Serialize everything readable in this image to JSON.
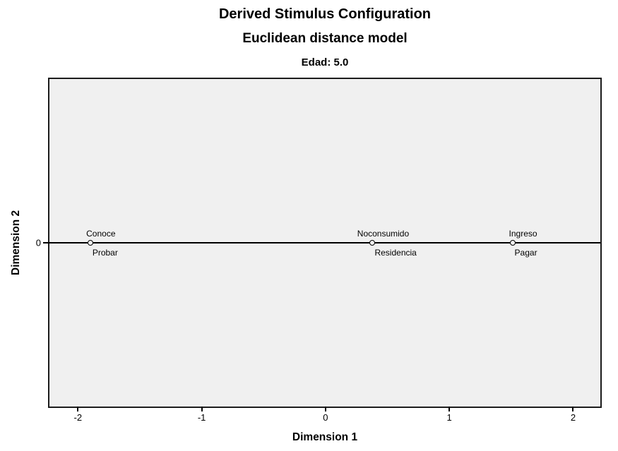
{
  "chart_data": {
    "type": "scatter",
    "title": "Derived Stimulus Configuration",
    "subtitle": "Euclidean distance model",
    "panel_label": "Edad: 5.0",
    "xlabel": "Dimension 1",
    "ylabel": "Dimension 2",
    "xlim": [
      -2.23,
      2.22
    ],
    "ylim": [
      -1.25,
      1.25
    ],
    "x_ticks": [
      -2,
      -1,
      0,
      1,
      2
    ],
    "y_ticks": [
      0
    ],
    "grid": false,
    "legend": false,
    "plot_background": "#f0f0f0",
    "frame_color": "#1c1c1c",
    "marker": {
      "shape": "open-circle",
      "stroke": "#000000",
      "fill": "#f0f0f0"
    },
    "reference_line": {
      "axis": "y",
      "value": 0
    },
    "points": [
      {
        "x": -1.9,
        "y": 0,
        "label_above": "Conoce",
        "label_below": "Probar"
      },
      {
        "x": 0.38,
        "y": 0,
        "label_above": "Noconsumido",
        "label_below": "Residencia"
      },
      {
        "x": 1.51,
        "y": 0,
        "label_above": "Ingreso",
        "label_below": "Pagar"
      }
    ]
  }
}
